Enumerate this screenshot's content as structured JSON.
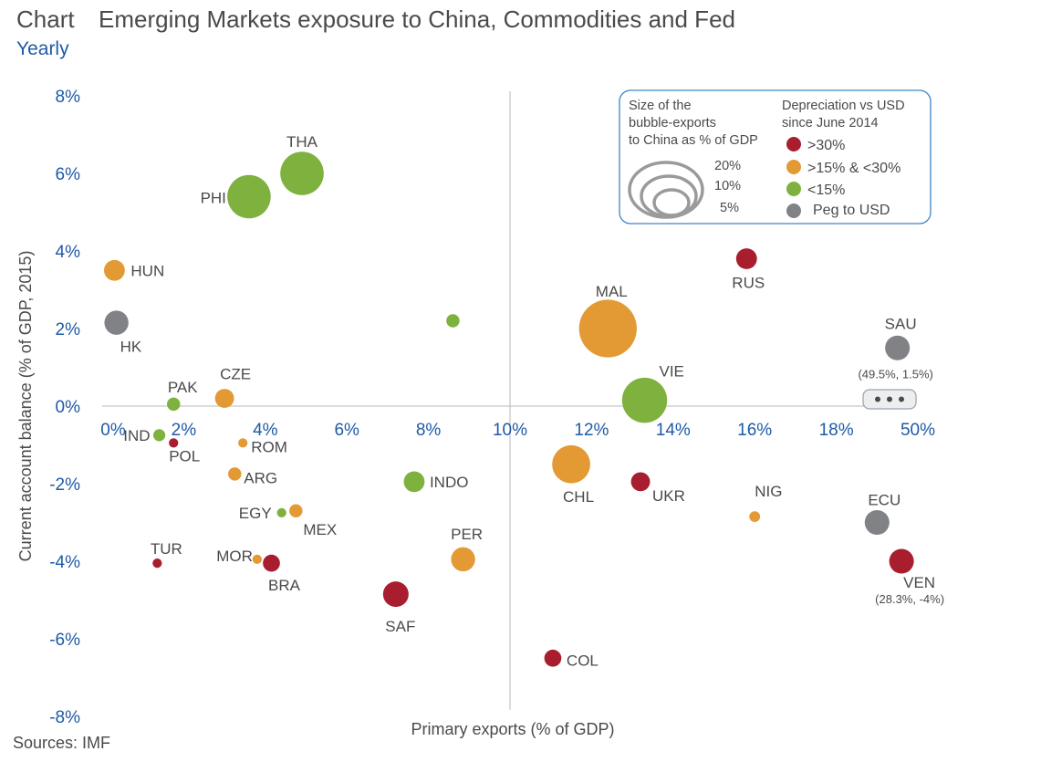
{
  "header": {
    "label": "Chart",
    "title": "Emerging Markets exposure to China, Commodities and Fed",
    "subtitle": "Yearly"
  },
  "source": "Sources: IMF",
  "colors": {
    ">30%": "#a81e2f",
    ">15% & <30%": "#e39a35",
    "<15%": "#7fb13f",
    "Peg to USD": "#808285",
    "axis_text": "#1f5aa6"
  },
  "chart_data": {
    "type": "scatter",
    "xlabel": "Primary exports (% of GDP)",
    "ylabel": "Current account balance (% of GDP, 2015)",
    "xlim": [
      0,
      20
    ],
    "ylim": [
      -8,
      8
    ],
    "x_ticks": [
      "0%",
      "2%",
      "4%",
      "6%",
      "8%",
      "10%",
      "12%",
      "14%",
      "16%",
      "18%",
      "50%"
    ],
    "y_ticks": [
      "8%",
      "6%",
      "4%",
      "2%",
      "0%",
      "-2%",
      "-4%",
      "-6%",
      "-8%"
    ],
    "x_tick_values": [
      0,
      2,
      4,
      6,
      8,
      10,
      12,
      14,
      16,
      18,
      20
    ],
    "y_tick_values": [
      8,
      6,
      4,
      2,
      0,
      -2,
      -4,
      -6,
      -8
    ],
    "grid": false,
    "vline_x": 10,
    "points": [
      {
        "label": "THA",
        "x": 4.9,
        "y": 6.0,
        "size": 13,
        "group": "<15%"
      },
      {
        "label": "PHI",
        "x": 3.6,
        "y": 5.4,
        "size": 13,
        "group": "<15%"
      },
      {
        "label": "HUN",
        "x": 0.3,
        "y": 3.5,
        "size": 3,
        "group": ">15% & <30%"
      },
      {
        "label": "HK",
        "x": 0.35,
        "y": 2.15,
        "size": 4,
        "group": "Peg to USD"
      },
      {
        "label": "",
        "x": 8.6,
        "y": 2.2,
        "size": 1.2,
        "group": "<15%"
      },
      {
        "label": "MAL",
        "x": 12.4,
        "y": 2.0,
        "size": 23,
        "group": ">15% & <30%"
      },
      {
        "label": "RUS",
        "x": 15.8,
        "y": 3.8,
        "size": 3,
        "group": ">30%"
      },
      {
        "label": "SAU",
        "x": 19.5,
        "y": 1.5,
        "size": 4.2,
        "group": "Peg to USD",
        "note": "(49.5%, 1.5%)"
      },
      {
        "label": "VIE",
        "x": 13.3,
        "y": 0.15,
        "size": 14,
        "group": "<15%"
      },
      {
        "label": "PAK",
        "x": 1.75,
        "y": 0.05,
        "size": 1.2,
        "group": "<15%"
      },
      {
        "label": "CZE",
        "x": 3.0,
        "y": 0.2,
        "size": 2.5,
        "group": ">15% & <30%"
      },
      {
        "label": "IND",
        "x": 1.4,
        "y": -0.75,
        "size": 1.0,
        "group": "<15%"
      },
      {
        "label": "POL",
        "x": 1.75,
        "y": -0.95,
        "size": 0.6,
        "group": ">30%"
      },
      {
        "label": "ROM",
        "x": 3.45,
        "y": -0.95,
        "size": 0.6,
        "group": ">15% & <30%"
      },
      {
        "label": "ARG",
        "x": 3.25,
        "y": -1.75,
        "size": 1.2,
        "group": ">15% & <30%"
      },
      {
        "label": "INDO",
        "x": 7.65,
        "y": -1.95,
        "size": 3,
        "group": "<15%"
      },
      {
        "label": "CHL",
        "x": 11.5,
        "y": -1.5,
        "size": 10,
        "group": ">15% & <30%"
      },
      {
        "label": "UKR",
        "x": 13.2,
        "y": -1.95,
        "size": 2.5,
        "group": ">30%"
      },
      {
        "label": "EGY",
        "x": 4.4,
        "y": -2.75,
        "size": 0.6,
        "group": "<15%"
      },
      {
        "label": "MEX",
        "x": 4.75,
        "y": -2.7,
        "size": 1.2,
        "group": ">15% & <30%"
      },
      {
        "label": "NIG",
        "x": 16.0,
        "y": -2.85,
        "size": 0.8,
        "group": ">15% & <30%"
      },
      {
        "label": "ECU",
        "x": 19.0,
        "y": -3.0,
        "size": 4.2,
        "group": "Peg to USD"
      },
      {
        "label": "TUR",
        "x": 1.35,
        "y": -4.05,
        "size": 0.6,
        "group": ">30%"
      },
      {
        "label": "MOR",
        "x": 3.8,
        "y": -3.95,
        "size": 0.6,
        "group": ">15% & <30%"
      },
      {
        "label": "BRA",
        "x": 4.15,
        "y": -4.05,
        "size": 2.0,
        "group": ">30%"
      },
      {
        "label": "PER",
        "x": 8.85,
        "y": -3.95,
        "size": 4.0,
        "group": ">15% & <30%"
      },
      {
        "label": "SAF",
        "x": 7.2,
        "y": -4.85,
        "size": 4.5,
        "group": ">30%"
      },
      {
        "label": "VEN",
        "x": 19.6,
        "y": -4.0,
        "size": 4.2,
        "group": ">30%",
        "note": "(28.3%, -4%)"
      },
      {
        "label": "COL",
        "x": 11.05,
        "y": -6.5,
        "size": 2.0,
        "group": ">30%"
      }
    ],
    "legend": {
      "size_title": [
        "Size of the",
        "bubble-exports",
        "to China as % of GDP"
      ],
      "size_entries": [
        "20%",
        "10%",
        "5%"
      ],
      "color_title": [
        "Depreciation vs USD",
        "since June 2014"
      ],
      "color_entries": [
        ">30%",
        ">15% & <30%",
        "<15%",
        "Peg to USD"
      ],
      "placement": "top-right"
    }
  }
}
